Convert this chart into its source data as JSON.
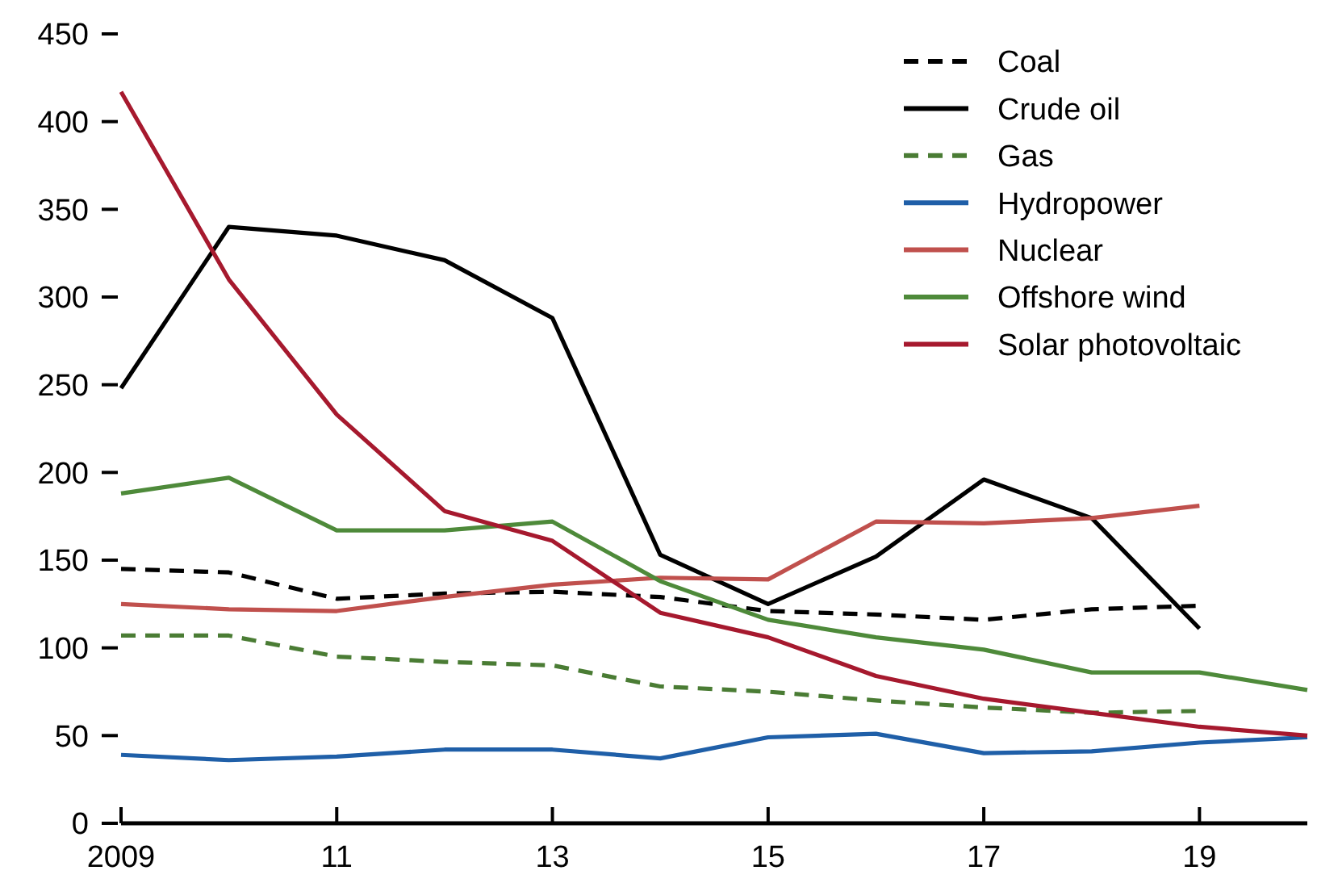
{
  "chart_data": {
    "type": "line",
    "x": [
      2009,
      2010,
      2011,
      2012,
      2013,
      2014,
      2015,
      2016,
      2017,
      2018,
      2019,
      2020
    ],
    "xlim": [
      2009,
      2020
    ],
    "xticks": [
      {
        "value": 2009,
        "label": "2009"
      },
      {
        "value": 2011,
        "label": "11"
      },
      {
        "value": 2013,
        "label": "13"
      },
      {
        "value": 2015,
        "label": "15"
      },
      {
        "value": 2017,
        "label": "17"
      },
      {
        "value": 2019,
        "label": "19"
      }
    ],
    "ylim": [
      0,
      450
    ],
    "yticks": [
      0,
      50,
      100,
      150,
      200,
      250,
      300,
      350,
      400,
      450
    ],
    "grid": false,
    "legend": "top right",
    "marker": "none",
    "series": [
      {
        "name": "Coal",
        "color": "#000000",
        "line_style": "dashed",
        "values": [
          145,
          143,
          128,
          131,
          132,
          129,
          121,
          119,
          116,
          122,
          124,
          null
        ]
      },
      {
        "name": "Crude oil",
        "color": "#000000",
        "line_style": "solid",
        "values": [
          248,
          340,
          335,
          321,
          288,
          153,
          125,
          152,
          196,
          174,
          111,
          null
        ]
      },
      {
        "name": "Gas",
        "color": "#4a7c34",
        "line_style": "dashed",
        "values": [
          107,
          107,
          95,
          92,
          90,
          78,
          75,
          70,
          66,
          63,
          64,
          null
        ]
      },
      {
        "name": "Hydropower",
        "color": "#1f5fa8",
        "line_style": "solid",
        "values": [
          39,
          36,
          38,
          42,
          42,
          37,
          49,
          51,
          40,
          41,
          46,
          49
        ]
      },
      {
        "name": "Nuclear",
        "color": "#c0504d",
        "line_style": "solid",
        "values": [
          125,
          122,
          121,
          129,
          136,
          140,
          139,
          172,
          171,
          174,
          181,
          null
        ]
      },
      {
        "name": "Offshore wind",
        "color": "#4e8a3a",
        "line_style": "solid",
        "values": [
          188,
          197,
          167,
          167,
          172,
          138,
          116,
          106,
          99,
          86,
          86,
          76
        ]
      },
      {
        "name": "Solar photovoltaic",
        "color": "#a6192e",
        "line_style": "solid",
        "values": [
          417,
          310,
          233,
          178,
          161,
          120,
          106,
          84,
          71,
          63,
          55,
          50
        ]
      }
    ]
  }
}
